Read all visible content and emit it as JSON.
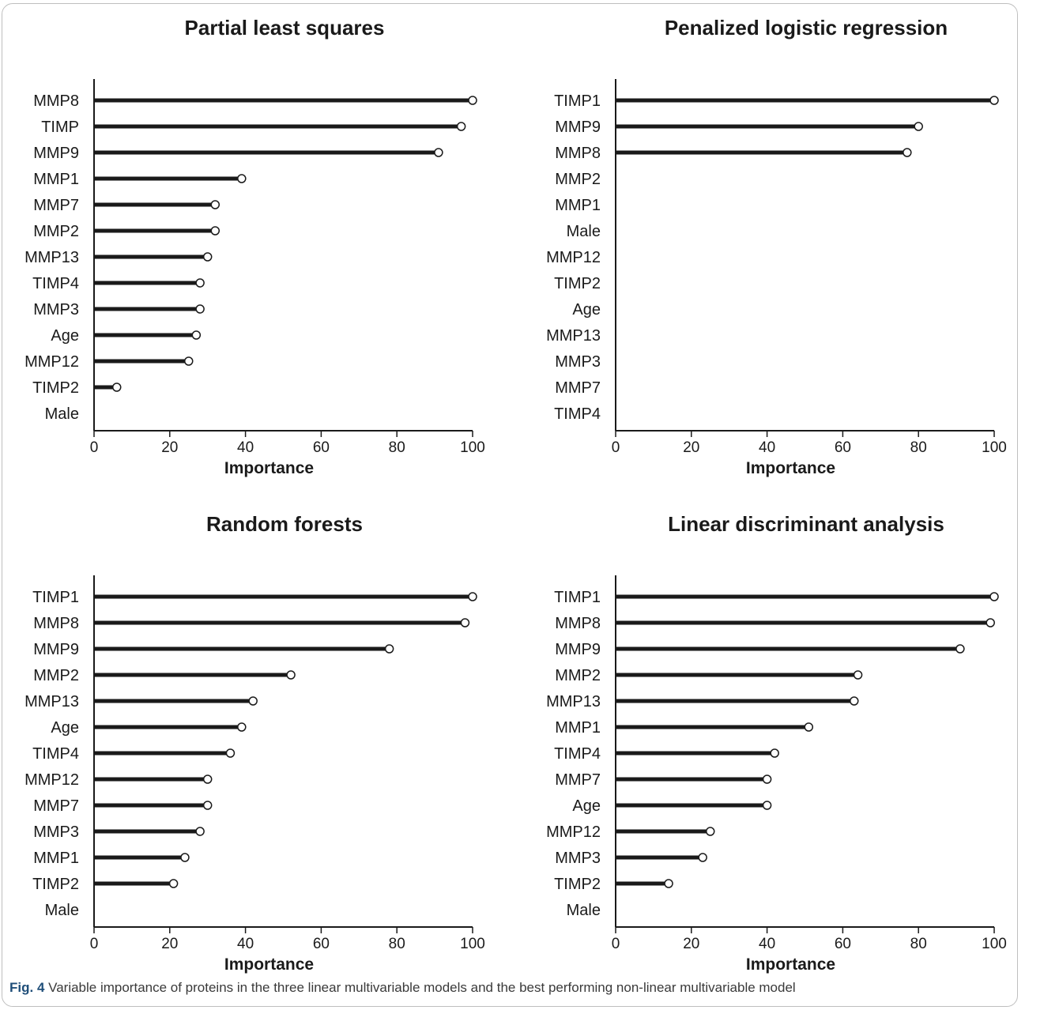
{
  "caption": {
    "label": "Fig. 4",
    "text": " Variable importance of proteins in the three linear multivariable models and the best performing non-linear multivariable model"
  },
  "colors": {
    "bar": "#1a1a1a",
    "marker_fill": "#ffffff",
    "axis": "#1a1a1a",
    "text": "#1a1a1a"
  },
  "chart_data": [
    {
      "type": "bar",
      "orientation": "horizontal",
      "style": "lollipop",
      "title": "Partial least squares",
      "xlabel": "Importance",
      "ylabel": "",
      "xlim": [
        0,
        100
      ],
      "xticks": [
        0,
        20,
        40,
        60,
        80,
        100
      ],
      "grid": false,
      "categories": [
        "MMP8",
        "TIMP",
        "MMP9",
        "MMP1",
        "MMP7",
        "MMP2",
        "MMP13",
        "TIMP4",
        "MMP3",
        "Age",
        "MMP12",
        "TIMP2",
        "Male"
      ],
      "values": [
        100,
        97,
        91,
        39,
        32,
        32,
        30,
        28,
        28,
        27,
        25,
        6,
        null
      ]
    },
    {
      "type": "bar",
      "orientation": "horizontal",
      "style": "lollipop",
      "title": "Penalized logistic regression",
      "xlabel": "Importance",
      "ylabel": "",
      "xlim": [
        0,
        100
      ],
      "xticks": [
        0,
        20,
        40,
        60,
        80,
        100
      ],
      "grid": false,
      "categories": [
        "TIMP1",
        "MMP9",
        "MMP8",
        "MMP2",
        "MMP1",
        "Male",
        "MMP12",
        "TIMP2",
        "Age",
        "MMP13",
        "MMP3",
        "MMP7",
        "TIMP4"
      ],
      "values": [
        100,
        80,
        77,
        null,
        null,
        null,
        null,
        null,
        null,
        null,
        null,
        null,
        null
      ]
    },
    {
      "type": "bar",
      "orientation": "horizontal",
      "style": "lollipop",
      "title": "Random forests",
      "xlabel": "Importance",
      "ylabel": "",
      "xlim": [
        0,
        100
      ],
      "xticks": [
        0,
        20,
        40,
        60,
        80,
        100
      ],
      "grid": false,
      "categories": [
        "TIMP1",
        "MMP8",
        "MMP9",
        "MMP2",
        "MMP13",
        "Age",
        "TIMP4",
        "MMP12",
        "MMP7",
        "MMP3",
        "MMP1",
        "TIMP2",
        "Male"
      ],
      "values": [
        100,
        98,
        78,
        52,
        42,
        39,
        36,
        30,
        30,
        28,
        24,
        21,
        null
      ]
    },
    {
      "type": "bar",
      "orientation": "horizontal",
      "style": "lollipop",
      "title": "Linear discriminant analysis",
      "xlabel": "Importance",
      "ylabel": "",
      "xlim": [
        0,
        100
      ],
      "xticks": [
        0,
        20,
        40,
        60,
        80,
        100
      ],
      "grid": false,
      "categories": [
        "TIMP1",
        "MMP8",
        "MMP9",
        "MMP2",
        "MMP13",
        "MMP1",
        "TIMP4",
        "MMP7",
        "Age",
        "MMP12",
        "MMP3",
        "TIMP2",
        "Male"
      ],
      "values": [
        100,
        99,
        91,
        64,
        63,
        51,
        42,
        40,
        40,
        25,
        23,
        14,
        null
      ]
    }
  ]
}
